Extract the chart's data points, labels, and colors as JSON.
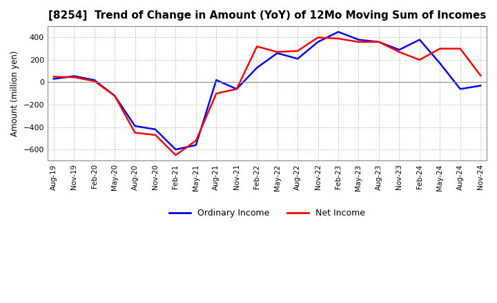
{
  "title": "[8254]  Trend of Change in Amount (YoY) of 12Mo Moving Sum of Incomes",
  "ylabel": "Amount (million yen)",
  "legend_labels": [
    "Ordinary Income",
    "Net Income"
  ],
  "line_colors": [
    "#0000ff",
    "#ff0000"
  ],
  "x_labels": [
    "Aug-19",
    "Nov-19",
    "Feb-20",
    "May-20",
    "Aug-20",
    "Nov-20",
    "Feb-21",
    "May-21",
    "Aug-21",
    "Nov-21",
    "Feb-22",
    "May-22",
    "Aug-22",
    "Nov-22",
    "Feb-23",
    "May-23",
    "Aug-23",
    "Nov-23",
    "Feb-24",
    "May-24",
    "Aug-24",
    "Nov-24"
  ],
  "ordinary_income": [
    30,
    55,
    20,
    -120,
    -390,
    -420,
    -600,
    -560,
    20,
    -60,
    130,
    260,
    210,
    360,
    450,
    380,
    360,
    290,
    380,
    170,
    -60,
    -30
  ],
  "net_income": [
    50,
    45,
    10,
    -120,
    -450,
    -470,
    -650,
    -520,
    -100,
    -60,
    320,
    270,
    280,
    400,
    390,
    360,
    360,
    270,
    200,
    300,
    300,
    60
  ],
  "ylim": [
    -700,
    500
  ],
  "yticks": [
    -600,
    -400,
    -200,
    0,
    200,
    400
  ],
  "background_color": "#ffffff",
  "grid_color": "#aaaaaa",
  "spine_color": "#888888"
}
